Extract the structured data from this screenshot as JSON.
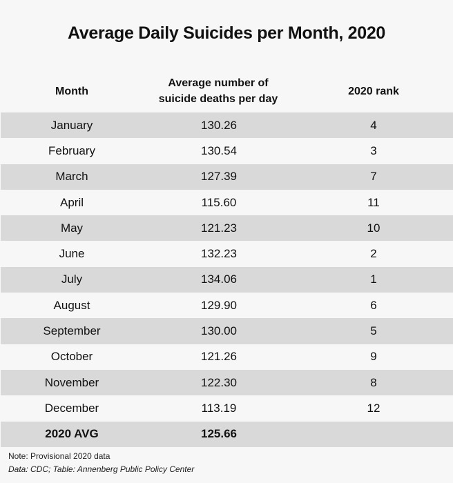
{
  "title": "Average Daily Suicides per Month, 2020",
  "columns": [
    "Month",
    "Average number of suicide deaths per day",
    "2020 rank"
  ],
  "chart_data": {
    "type": "table",
    "title": "Average Daily Suicides per Month, 2020",
    "columns": [
      "Month",
      "Average number of suicide deaths per day",
      "2020 rank"
    ],
    "rows": [
      [
        "January",
        "130.26",
        "4"
      ],
      [
        "February",
        "130.54",
        "3"
      ],
      [
        "March",
        "127.39",
        "7"
      ],
      [
        "April",
        "115.60",
        "11"
      ],
      [
        "May",
        "121.23",
        "10"
      ],
      [
        "June",
        "132.23",
        "2"
      ],
      [
        "July",
        "134.06",
        "1"
      ],
      [
        "August",
        "129.90",
        "6"
      ],
      [
        "September",
        "130.00",
        "5"
      ],
      [
        "October",
        "121.26",
        "9"
      ],
      [
        "November",
        "122.30",
        "8"
      ],
      [
        "December",
        "113.19",
        "12"
      ]
    ],
    "total_row": [
      "2020 AVG",
      "125.66",
      ""
    ]
  },
  "colors": {
    "background": "#f7f7f7",
    "band": "#d9d9d9"
  },
  "notes": {
    "note": "Note: Provisional 2020 data",
    "source": "Data: CDC; Table: Annenberg Public Policy Center"
  }
}
